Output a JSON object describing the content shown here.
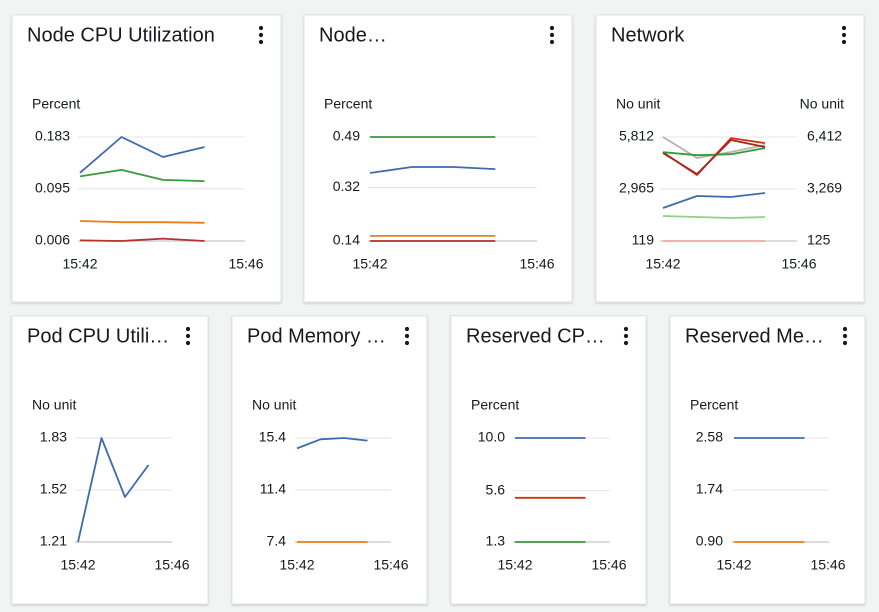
{
  "chart_data": [
    {
      "type": "line",
      "title": "Node CPU Utilization",
      "y_label": "Percent",
      "categories": [
        "15:42",
        null,
        null,
        null,
        "15:46"
      ],
      "ylim": [
        0.006,
        0.183
      ],
      "yticks": [
        0.006,
        0.095,
        0.183
      ],
      "grid": true,
      "series": [
        {
          "color": "#3f6bab",
          "values": [
            0.122,
            0.183,
            0.149,
            0.166,
            null
          ]
        },
        {
          "color": "#3a9a3a",
          "values": [
            0.116,
            0.127,
            0.11,
            0.108,
            null
          ]
        },
        {
          "color": "#e8811c",
          "values": [
            0.04,
            0.038,
            0.038,
            0.037,
            null
          ]
        },
        {
          "color": "#b5322b",
          "values": [
            0.007,
            0.006,
            0.01,
            0.006,
            null
          ]
        }
      ]
    },
    {
      "type": "line",
      "title": "Node…",
      "y_label": "Percent",
      "categories": [
        "15:42",
        null,
        null,
        null,
        "15:46"
      ],
      "ylim": [
        0.14,
        0.49
      ],
      "yticks": [
        0.14,
        0.32,
        0.49
      ],
      "grid": true,
      "series": [
        {
          "color": "#3a9a3a",
          "values": [
            0.49,
            0.49,
            0.49,
            0.49,
            null
          ]
        },
        {
          "color": "#3f6bab",
          "values": [
            0.369,
            0.389,
            0.389,
            0.382,
            null
          ]
        },
        {
          "color": "#e8811c",
          "values": [
            0.157,
            0.157,
            0.157,
            0.157,
            null
          ]
        },
        {
          "color": "#b5322b",
          "values": [
            0.14,
            0.14,
            0.14,
            0.14,
            null
          ]
        }
      ]
    },
    {
      "type": "line",
      "title": "Network",
      "y_label": "No unit",
      "y2_label": "No unit",
      "categories": [
        "15:42",
        null,
        null,
        null,
        "15:46"
      ],
      "ylim": [
        119,
        5812
      ],
      "yticks": [
        119,
        {
          "value": 2965,
          "label": "2,965"
        },
        {
          "value": 5812,
          "label": "5,812"
        }
      ],
      "y2lim": [
        125,
        6412
      ],
      "y2ticks": [
        125,
        {
          "value": 3269,
          "label": "3,269"
        },
        {
          "value": 6412,
          "label": "6,412"
        }
      ],
      "grid": true,
      "series": [
        {
          "color": "#b3b3b3",
          "values": [
            5812,
            4663,
            4991,
            5374,
            null
          ]
        },
        {
          "color": "#d13212",
          "values": [
            4979,
            3731,
            5754,
            5480,
            null
          ]
        },
        {
          "color": "#3a9a3a",
          "values": [
            4979,
            4815,
            4870,
            5207,
            null
          ]
        },
        {
          "color": "#a4271c",
          "axis": "y2",
          "values": [
            5445,
            4175,
            6231,
            5807,
            null
          ]
        },
        {
          "color": "#3f6bab",
          "values": [
            1924,
            2581,
            2526,
            2745,
            null
          ]
        },
        {
          "color": "#8fd18c",
          "values": [
            1487,
            1432,
            1377,
            1432,
            null
          ]
        },
        {
          "color": "#f4a6a0",
          "values": [
            119,
            119,
            119,
            119,
            null
          ]
        }
      ]
    },
    {
      "type": "line",
      "title": "Pod CPU Utili…",
      "y_label": "No unit",
      "categories": [
        "15:42",
        null,
        null,
        null,
        "15:46"
      ],
      "ylim": [
        1.21,
        1.83
      ],
      "yticks": [
        1.21,
        1.52,
        1.83
      ],
      "grid": true,
      "series": [
        {
          "color": "#3f6bab",
          "values": [
            1.21,
            1.83,
            1.478,
            1.669,
            null
          ]
        }
      ]
    },
    {
      "type": "line",
      "title": "Pod Memory …",
      "y_label": "No unit",
      "categories": [
        "15:42",
        null,
        null,
        null,
        "15:46"
      ],
      "ylim": [
        7.4,
        15.4
      ],
      "yticks": [
        7.4,
        11.4,
        15.4
      ],
      "grid": true,
      "series": [
        {
          "color": "#3f6bab",
          "values": [
            14.6,
            15.3,
            15.4,
            15.2,
            null
          ]
        },
        {
          "color": "#e8811c",
          "values": [
            7.4,
            7.4,
            7.4,
            7.4,
            null
          ]
        }
      ]
    },
    {
      "type": "line",
      "title": "Reserved CP…",
      "y_label": "Percent",
      "categories": [
        "15:42",
        null,
        null,
        null,
        "15:46"
      ],
      "ylim": [
        1.3,
        10
      ],
      "yticks": [
        1.3,
        5.6,
        {
          "value": 10,
          "label": "10.0"
        }
      ],
      "grid": true,
      "series": [
        {
          "color": "#3f6bab",
          "values": [
            10,
            10,
            10,
            10,
            null
          ]
        },
        {
          "color": "#d13212",
          "values": [
            5.0,
            5.0,
            5.0,
            5.0,
            null
          ]
        },
        {
          "color": "#3a9a3a",
          "values": [
            1.3,
            1.3,
            1.3,
            1.3,
            null
          ]
        }
      ]
    },
    {
      "type": "line",
      "title": "Reserved Me…",
      "y_label": "Percent",
      "categories": [
        "15:42",
        null,
        null,
        null,
        "15:46"
      ],
      "ylim": [
        0.9,
        2.58
      ],
      "yticks": [
        {
          "value": 0.9,
          "label": "0.90"
        },
        1.74,
        2.58
      ],
      "grid": true,
      "series": [
        {
          "color": "#3f6bab",
          "values": [
            2.58,
            2.58,
            2.58,
            2.58,
            null
          ]
        },
        {
          "color": "#e8811c",
          "values": [
            0.9,
            0.9,
            0.9,
            0.9,
            null
          ]
        }
      ]
    }
  ]
}
